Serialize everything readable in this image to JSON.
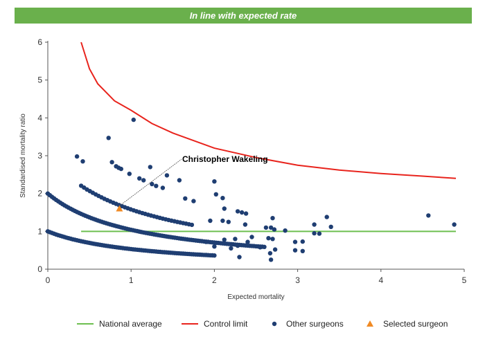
{
  "banner": {
    "text": "In line with expected rate",
    "color": "#6ab04c"
  },
  "colors": {
    "national": "#6cbf4f",
    "control": "#e8231c",
    "others": "#1f3e72",
    "selected": "#f08a24"
  },
  "chart_data": {
    "type": "scatter",
    "xlabel": "Expected mortality",
    "ylabel": "Standardised mortality ratio",
    "xlim": [
      0,
      5
    ],
    "ylim": [
      0,
      6
    ],
    "xticks": [
      "0",
      "1",
      "2",
      "3",
      "4",
      "5"
    ],
    "yticks": [
      "0",
      "1",
      "2",
      "3",
      "4",
      "5",
      "6"
    ],
    "grid": false,
    "legend_position": "bottom",
    "national_average": {
      "name": "National average",
      "y": 1,
      "x_range": [
        0.4,
        4.9
      ]
    },
    "control_limit": {
      "name": "Control limit",
      "x": [
        0.4,
        0.5,
        0.6,
        0.8,
        1.0,
        1.25,
        1.5,
        2.0,
        2.5,
        3.0,
        3.5,
        4.0,
        4.5,
        4.9
      ],
      "y": [
        6.0,
        5.3,
        4.9,
        4.45,
        4.2,
        3.85,
        3.6,
        3.2,
        2.95,
        2.75,
        2.62,
        2.53,
        2.46,
        2.4
      ]
    },
    "others": {
      "name": "Other surgeons",
      "curves": [
        {
          "k": 1,
          "x_min": 0.0,
          "x_max": 2.0,
          "step": 0.025
        },
        {
          "k": 2,
          "x_min": 0.0,
          "x_max": 2.6,
          "step": 0.025
        },
        {
          "k": 3,
          "x_min": 0.4,
          "x_max": 1.75,
          "step": 0.035
        }
      ],
      "points": [
        [
          0.35,
          2.98
        ],
        [
          0.42,
          2.85
        ],
        [
          0.73,
          3.47
        ],
        [
          0.77,
          2.83
        ],
        [
          0.82,
          2.72
        ],
        [
          0.85,
          2.68
        ],
        [
          0.88,
          2.65
        ],
        [
          0.98,
          2.52
        ],
        [
          1.03,
          3.95
        ],
        [
          1.1,
          2.4
        ],
        [
          1.15,
          2.35
        ],
        [
          1.23,
          2.7
        ],
        [
          1.25,
          2.25
        ],
        [
          1.3,
          2.2
        ],
        [
          1.38,
          2.15
        ],
        [
          1.43,
          2.48
        ],
        [
          1.58,
          2.35
        ],
        [
          1.65,
          1.87
        ],
        [
          1.75,
          1.8
        ],
        [
          2.0,
          2.32
        ],
        [
          2.02,
          1.98
        ],
        [
          2.1,
          1.88
        ],
        [
          2.12,
          1.6
        ],
        [
          2.28,
          1.53
        ],
        [
          2.33,
          1.5
        ],
        [
          2.38,
          1.47
        ],
        [
          2.1,
          1.28
        ],
        [
          2.17,
          1.25
        ],
        [
          2.37,
          1.18
        ],
        [
          2.12,
          0.78
        ],
        [
          2.28,
          0.62
        ],
        [
          2.3,
          0.32
        ],
        [
          2.55,
          0.58
        ],
        [
          2.62,
          1.1
        ],
        [
          2.68,
          1.1
        ],
        [
          2.7,
          1.35
        ],
        [
          2.72,
          1.05
        ],
        [
          2.65,
          0.82
        ],
        [
          2.7,
          0.8
        ],
        [
          2.73,
          0.52
        ],
        [
          2.67,
          0.42
        ],
        [
          2.68,
          0.25
        ],
        [
          2.85,
          1.02
        ],
        [
          2.97,
          0.72
        ],
        [
          3.06,
          0.73
        ],
        [
          2.97,
          0.5
        ],
        [
          3.06,
          0.48
        ],
        [
          3.2,
          1.18
        ],
        [
          3.2,
          0.95
        ],
        [
          3.26,
          0.94
        ],
        [
          3.35,
          1.38
        ],
        [
          3.4,
          1.12
        ],
        [
          4.57,
          1.42
        ],
        [
          4.88,
          1.18
        ],
        [
          2.0,
          0.6
        ],
        [
          2.2,
          0.55
        ],
        [
          1.9,
          0.72
        ],
        [
          2.45,
          0.85
        ],
        [
          1.95,
          1.28
        ],
        [
          2.25,
          0.8
        ],
        [
          2.4,
          0.72
        ]
      ]
    },
    "selected": {
      "name": "Selected surgeon",
      "x": 0.86,
      "y": 1.6,
      "label": "Christopher Wakeling"
    }
  }
}
